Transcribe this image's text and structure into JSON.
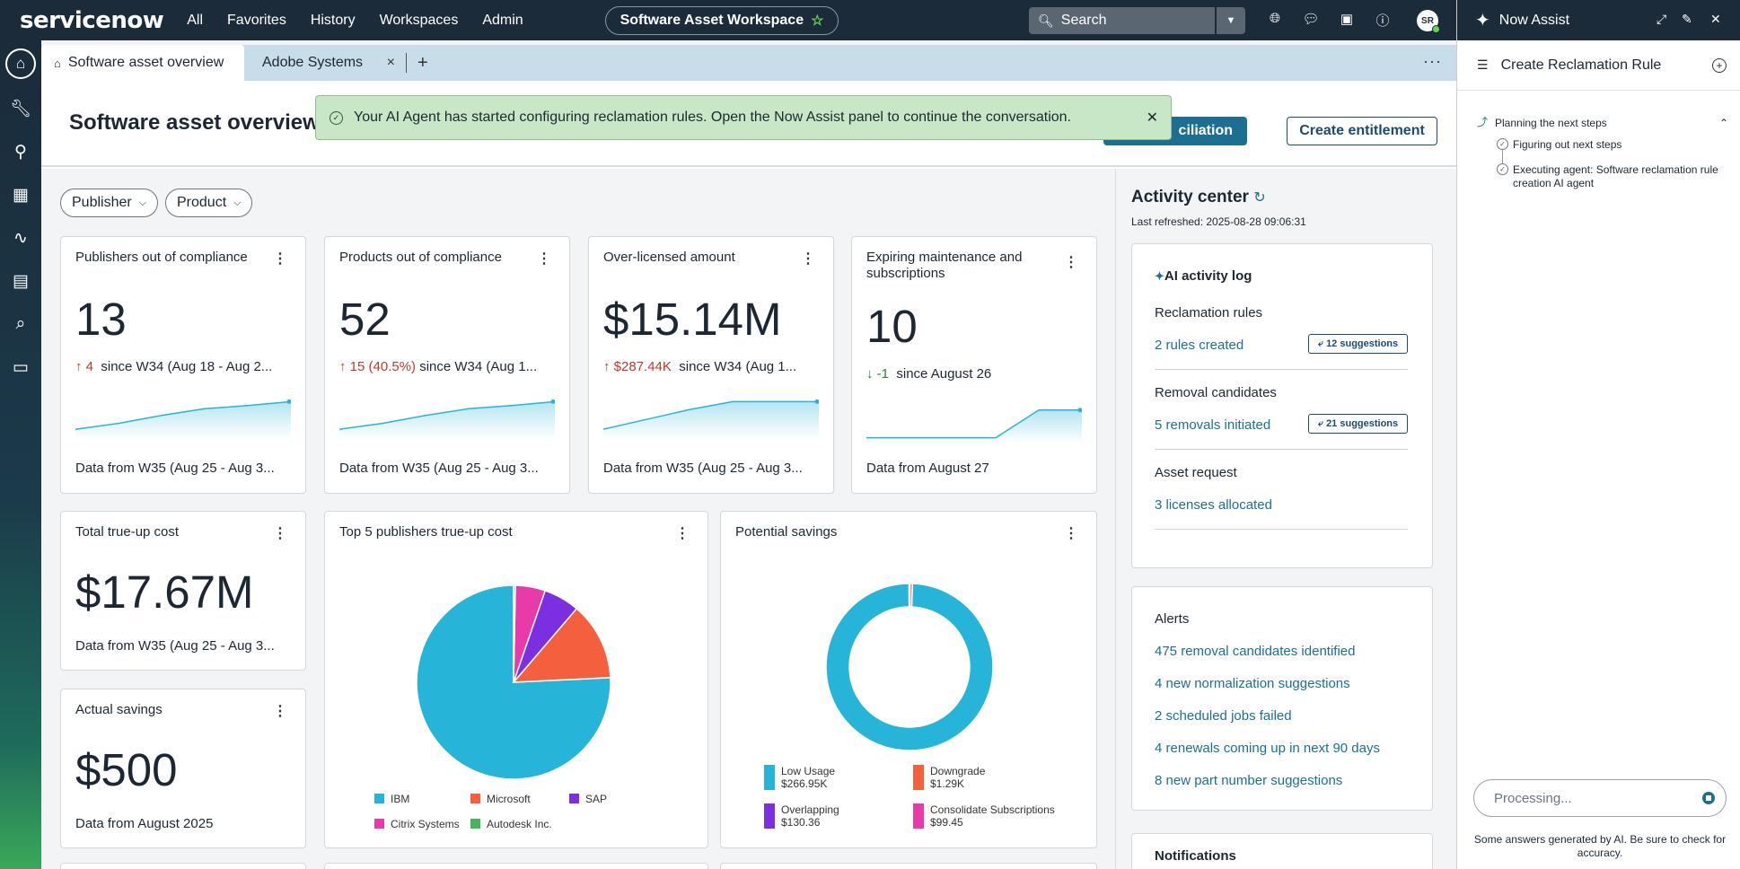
{
  "topnav": {
    "logo": "servicenow",
    "items": [
      "All",
      "Favorites",
      "History",
      "Workspaces",
      "Admin"
    ],
    "workspace": "Software Asset Workspace",
    "search_placeholder": "Search",
    "avatar_initials": "SR",
    "icons": [
      "globe-icon",
      "chat-icon",
      "inbox-icon",
      "help-icon"
    ]
  },
  "rail": {
    "icons": [
      "home-icon",
      "wrench-icon",
      "search-agents-icon",
      "dashboard-icon",
      "activity-icon",
      "calendar-icon",
      "report-search-icon",
      "inbox-tray-icon"
    ]
  },
  "tabs": {
    "active": "Software asset overview",
    "second": "Adobe Systems"
  },
  "header": {
    "title": "Software asset overview",
    "reconciliation_button": "ciliation",
    "entitlement_button": "Create entitlement"
  },
  "toast": {
    "message": "Your AI Agent has started configuring reclamation rules. Open the Now Assist panel to continue the conversation."
  },
  "filters": [
    "Publisher",
    "Product"
  ],
  "kpi_cards": [
    {
      "title": "Publishers out of compliance",
      "value": "13",
      "delta": "4",
      "delta_dir": "up",
      "delta_text": "since W34 (Aug 18 - Aug 2...",
      "footer": "Data from W35 (Aug 25 - Aug 3...",
      "trend": [
        0.2,
        0.35,
        0.55,
        0.72,
        0.8,
        0.9
      ]
    },
    {
      "title": "Products out of compliance",
      "value": "52",
      "delta": "15 (40.5%)",
      "delta_dir": "up",
      "delta_text": "since W34 (Aug 1...",
      "footer": "Data from W35 (Aug 25 - Aug 3...",
      "trend": [
        0.2,
        0.35,
        0.55,
        0.72,
        0.8,
        0.9
      ]
    },
    {
      "title": "Over-licensed amount",
      "value": "$15.14M",
      "delta": "$287.44K",
      "delta_dir": "up",
      "delta_text": "since W34 (Aug 1...",
      "footer": "Data from W35 (Aug 25 - Aug 3...",
      "trend": [
        0.2,
        0.45,
        0.7,
        0.9,
        0.9,
        0.9
      ]
    },
    {
      "title": "Expiring maintenance and subscriptions",
      "value": "10",
      "delta": "-1",
      "delta_dir": "down",
      "delta_text": "since August 26",
      "footer": "Data from August 27",
      "trend": [
        0.1,
        0.1,
        0.1,
        0.1,
        0.8,
        0.8
      ]
    }
  ],
  "total_trueup": {
    "title": "Total true-up cost",
    "value": "$17.67M",
    "footer": "Data from W35 (Aug 25 - Aug 3..."
  },
  "actual_savings": {
    "title": "Actual savings",
    "value": "$500",
    "footer": "Data from August 2025"
  },
  "chart_data": [
    {
      "type": "pie",
      "title": "Top 5 publishers true-up cost",
      "categories": [
        "IBM",
        "Microsoft",
        "SAP",
        "Citrix Systems",
        "Autodesk Inc."
      ],
      "values": [
        76,
        13,
        6,
        5,
        0.3
      ],
      "colors": [
        "#27b4d9",
        "#f4603e",
        "#7b2fe0",
        "#e83aa9",
        "#47b35f"
      ]
    },
    {
      "type": "pie",
      "title": "Potential savings",
      "categories": [
        "Low Usage",
        "Downgrade",
        "Overlapping",
        "Consolidate Subscriptions"
      ],
      "value_labels": [
        "$266.95K",
        "$1.29K",
        "$130.36",
        "$99.45"
      ],
      "values": [
        266950,
        1290,
        130.36,
        99.45
      ],
      "colors": [
        "#27b4d9",
        "#f4603e",
        "#7b2fe0",
        "#e83aa9"
      ]
    }
  ],
  "activity": {
    "title": "Activity center",
    "last_refreshed": "Last refreshed: 2025-08-28 09:06:31",
    "ai_log_title": "AI activity log",
    "reclamation": {
      "title": "Reclamation rules",
      "link": "2 rules created",
      "suggestions": "12 suggestions"
    },
    "removal": {
      "title": "Removal candidates",
      "link": "5 removals initiated",
      "suggestions": "21 suggestions"
    },
    "asset_request": {
      "title": "Asset request",
      "link": "3 licenses allocated"
    },
    "alerts_title": "Alerts",
    "alerts": [
      "475 removal candidates identified",
      "4 new normalization suggestions",
      "2 scheduled jobs failed",
      "4 renewals coming up in next 90 days",
      "8 new part number suggestions"
    ],
    "notifications_title": "Notifications"
  },
  "assist": {
    "title": "Now Assist",
    "subtitle": "Create Reclamation Rule",
    "step_header": "Planning the next steps",
    "steps": [
      "Figuring out next steps",
      "Executing agent: Software reclamation rule creation AI agent"
    ],
    "input_placeholder": "Processing...",
    "disclaimer": "Some answers generated by AI. Be sure to check for accuracy."
  }
}
